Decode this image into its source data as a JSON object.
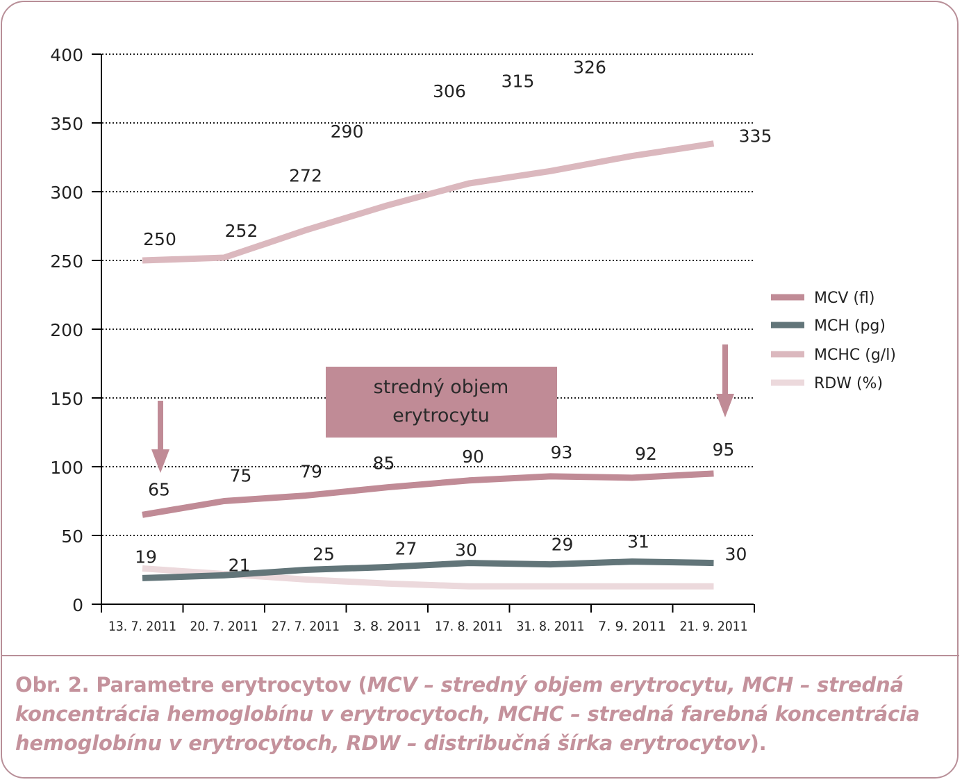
{
  "chart_data": {
    "type": "line",
    "categories": [
      "13. 7. 2011",
      "20. 7. 2011",
      "27. 7. 2011",
      "3. 8. 2011",
      "17. 8. 2011",
      "31. 8. 2011",
      "7. 9. 2011",
      "21. 9. 2011"
    ],
    "ylim": [
      0,
      400
    ],
    "yticks": [
      "0",
      "50",
      "100",
      "150",
      "200",
      "250",
      "300",
      "350",
      "400"
    ],
    "ytick_values": [
      0,
      50,
      100,
      150,
      200,
      250,
      300,
      350,
      400
    ],
    "grid": "horizontal dotted",
    "legend_position": "right",
    "series": [
      {
        "name": "MCV (fl)",
        "values": [
          65,
          75,
          79,
          85,
          90,
          93,
          92,
          95
        ],
        "labels": [
          "65",
          "75",
          "79",
          "85",
          "90",
          "93",
          "92",
          "95"
        ],
        "color": "#c08b96"
      },
      {
        "name": "MCH (pg)",
        "values": [
          19,
          21,
          25,
          27,
          30,
          29,
          31,
          30
        ],
        "labels": [
          "19",
          "21",
          "25",
          "27",
          "30",
          "29",
          "31",
          "30"
        ],
        "color": "#627579"
      },
      {
        "name": "MCHC (g/l)",
        "values": [
          250,
          252,
          272,
          290,
          306,
          315,
          326,
          335
        ],
        "labels": [
          "250",
          "252",
          "272",
          "290",
          "306",
          "315",
          "326",
          "335"
        ],
        "color": "#dbb8be"
      },
      {
        "name": "RDW (%)",
        "values": [
          26,
          22,
          18,
          15,
          13,
          13,
          13,
          13
        ],
        "labels": [],
        "color": "#ecd9dc"
      }
    ],
    "annotation": {
      "line1": "stredný objem",
      "line2": "erytrocytu"
    }
  },
  "caption": {
    "prefix": "Obr. 2. Parametre erytrocytov (",
    "italic": "MCV – stredný objem erytrocytu, MCH – stredná koncentrácia hemoglobínu v erytrocytoch, MCHC – stredná farebná koncentrácia hemoglobínu v erytrocytoch, RDW – distribučná šírka erytrocytov",
    "suffix": ")."
  },
  "colors": {
    "frame": "#b88f98",
    "caption": "#c4929c",
    "annotation_box": "#c08b96",
    "arrow": "#c08b96",
    "axis": "#000000"
  }
}
